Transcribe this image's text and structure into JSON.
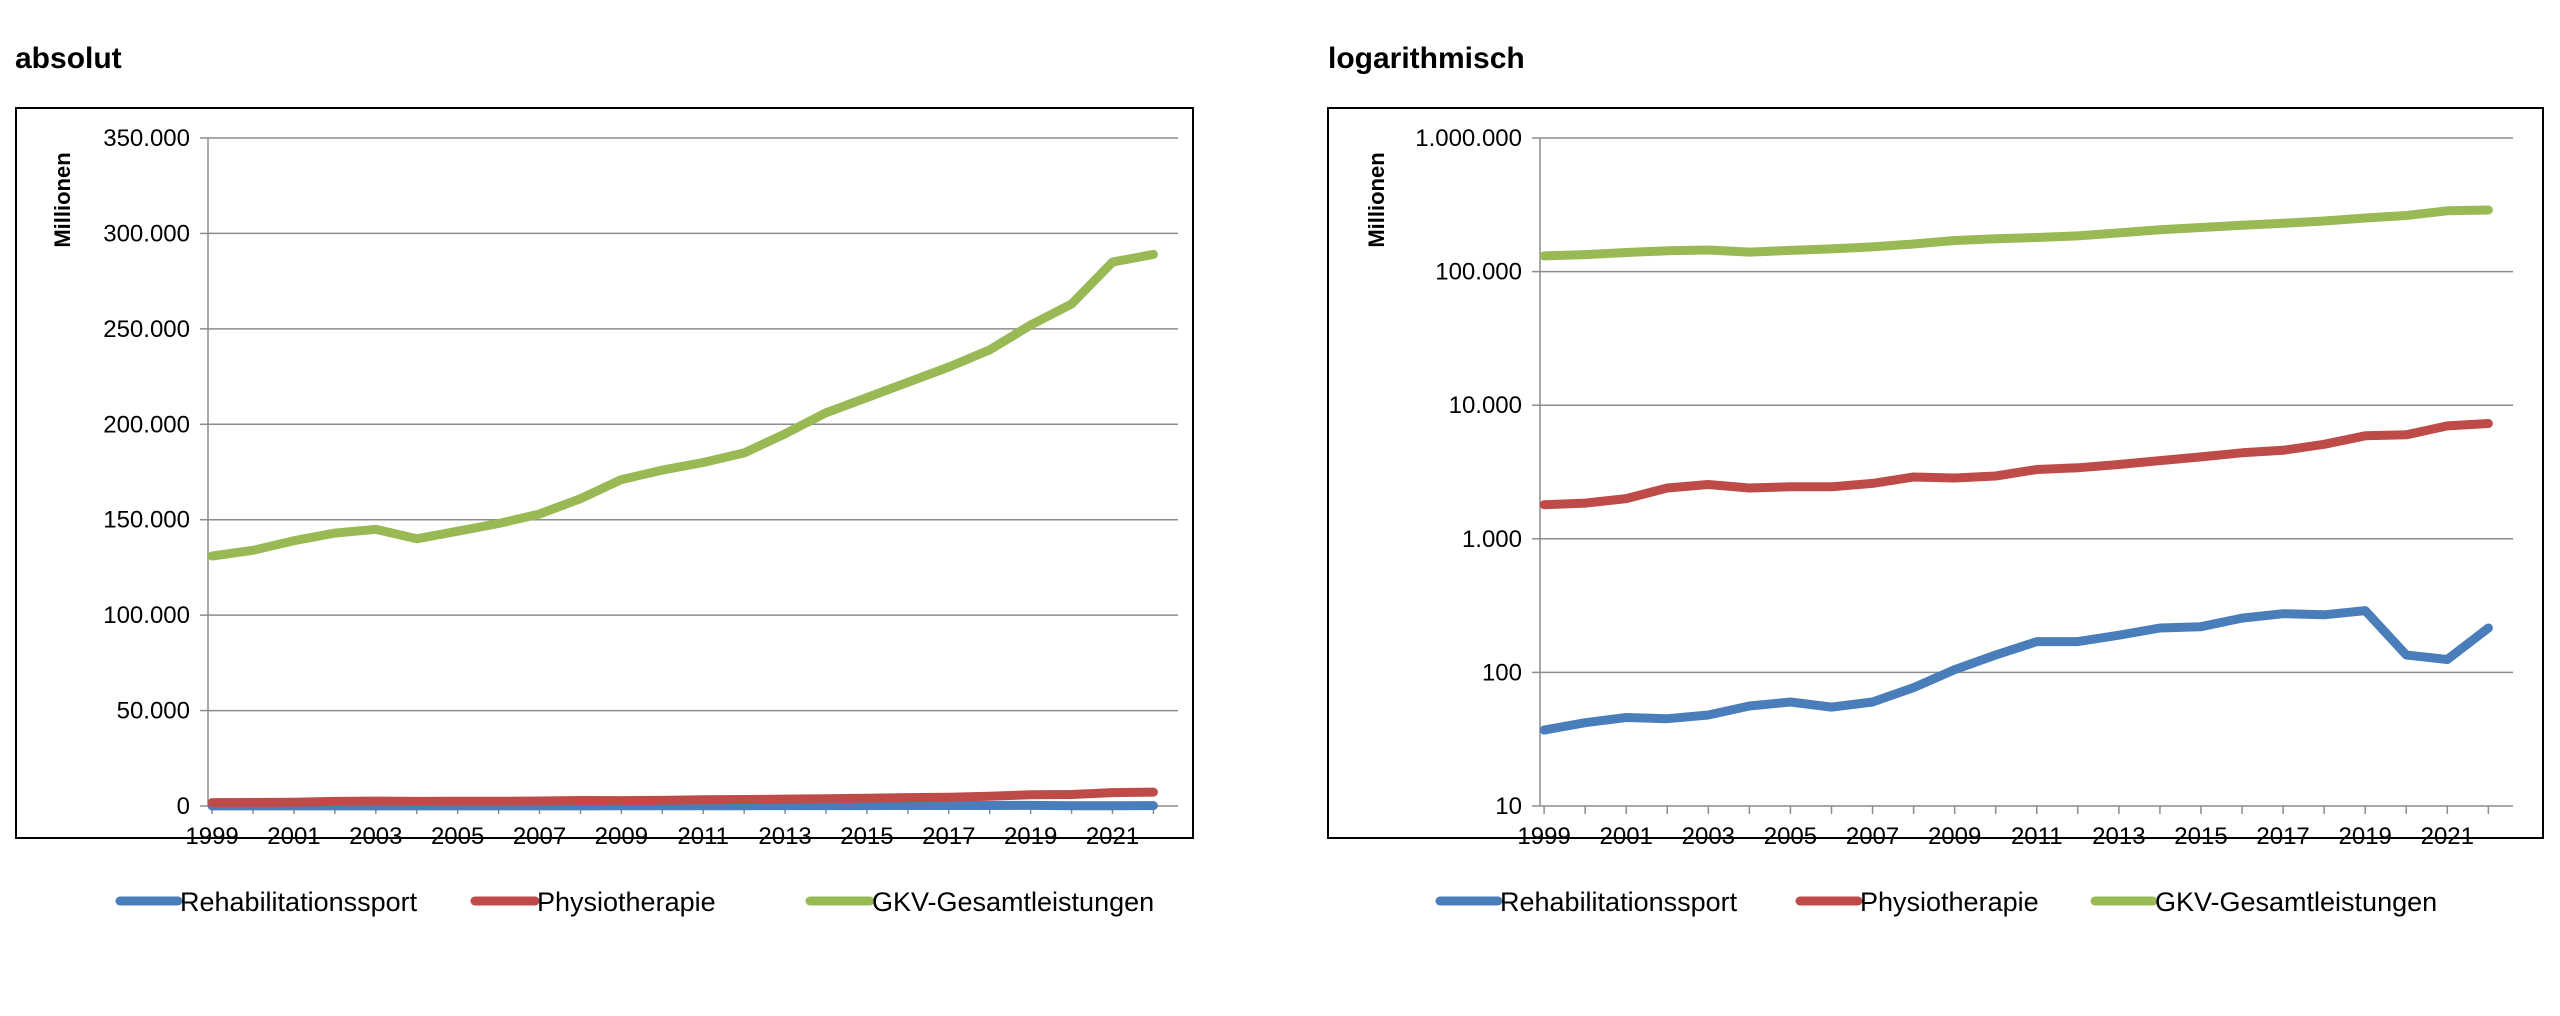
{
  "panels": {
    "left_title": "absolut",
    "right_title": "logarithmisch"
  },
  "chart_data": [
    {
      "type": "line",
      "title": "absolut",
      "ylabel": "Millionen",
      "xlabel": "",
      "scale": "linear",
      "ylim": [
        0,
        350000
      ],
      "yticks": [
        0,
        50000,
        100000,
        150000,
        200000,
        250000,
        300000,
        350000
      ],
      "ytick_labels": [
        "0",
        "50.000",
        "100.000",
        "150.000",
        "200.000",
        "250.000",
        "300.000",
        "350.000"
      ],
      "xtick_labels": [
        "1999",
        "2001",
        "2003",
        "2005",
        "2007",
        "2009",
        "2011",
        "2013",
        "2015",
        "2017",
        "2019",
        "2021"
      ],
      "x": [
        1999,
        2000,
        2001,
        2002,
        2003,
        2004,
        2005,
        2006,
        2007,
        2008,
        2009,
        2010,
        2011,
        2012,
        2013,
        2014,
        2015,
        2016,
        2017,
        2018,
        2019,
        2020,
        2021,
        2022
      ],
      "grid": true,
      "legend": "bottom",
      "series": [
        {
          "name": "Rehabilitationssport",
          "color": "#4a7ebb",
          "values": [
            37,
            42,
            46,
            45,
            48,
            56,
            60,
            55,
            60,
            77,
            105,
            135,
            170,
            170,
            190,
            215,
            220,
            255,
            275,
            270,
            290,
            135,
            125,
            215
          ]
        },
        {
          "name": "Physiotherapie",
          "color": "#be4b48",
          "values": [
            1800,
            1850,
            2000,
            2400,
            2550,
            2400,
            2450,
            2450,
            2600,
            2900,
            2850,
            2950,
            3300,
            3400,
            3600,
            3850,
            4100,
            4400,
            4600,
            5100,
            5900,
            6000,
            7000,
            7300
          ]
        },
        {
          "name": "GKV-Gesamtleistungen",
          "color": "#98b954",
          "values": [
            131000,
            134000,
            139000,
            143000,
            145000,
            140000,
            144000,
            148000,
            153000,
            161000,
            171000,
            176000,
            180000,
            185000,
            195000,
            206000,
            214000,
            222000,
            230000,
            239000,
            252000,
            263000,
            285000,
            289000
          ]
        }
      ]
    },
    {
      "type": "line",
      "title": "logarithmisch",
      "ylabel": "Millionen",
      "xlabel": "",
      "scale": "log",
      "ylim": [
        10,
        1000000
      ],
      "yticks": [
        10,
        100,
        1000,
        10000,
        100000,
        1000000
      ],
      "ytick_labels": [
        "10",
        "100",
        "1.000",
        "10.000",
        "100.000",
        "1.000.000"
      ],
      "xtick_labels": [
        "1999",
        "2001",
        "2003",
        "2005",
        "2007",
        "2009",
        "2011",
        "2013",
        "2015",
        "2017",
        "2019",
        "2021"
      ],
      "x": [
        1999,
        2000,
        2001,
        2002,
        2003,
        2004,
        2005,
        2006,
        2007,
        2008,
        2009,
        2010,
        2011,
        2012,
        2013,
        2014,
        2015,
        2016,
        2017,
        2018,
        2019,
        2020,
        2021,
        2022
      ],
      "grid": true,
      "legend": "bottom",
      "series": [
        {
          "name": "Rehabilitationssport",
          "color": "#4a7ebb",
          "values": [
            37,
            42,
            46,
            45,
            48,
            56,
            60,
            55,
            60,
            77,
            105,
            135,
            170,
            170,
            190,
            215,
            220,
            255,
            275,
            270,
            290,
            135,
            125,
            215
          ]
        },
        {
          "name": "Physiotherapie",
          "color": "#be4b48",
          "values": [
            1800,
            1850,
            2000,
            2400,
            2550,
            2400,
            2450,
            2450,
            2600,
            2900,
            2850,
            2950,
            3300,
            3400,
            3600,
            3850,
            4100,
            4400,
            4600,
            5100,
            5900,
            6000,
            7000,
            7300
          ]
        },
        {
          "name": "GKV-Gesamtleistungen",
          "color": "#98b954",
          "values": [
            131000,
            134000,
            139000,
            143000,
            145000,
            140000,
            144000,
            148000,
            153000,
            161000,
            171000,
            176000,
            180000,
            185000,
            195000,
            206000,
            214000,
            222000,
            230000,
            239000,
            252000,
            263000,
            285000,
            289000
          ]
        }
      ]
    }
  ]
}
